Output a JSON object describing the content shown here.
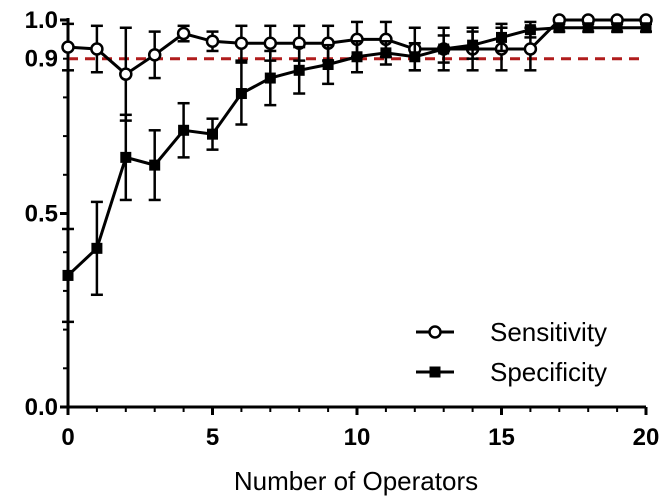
{
  "chart_data": {
    "type": "line",
    "xlabel": "Number of Operators",
    "ylabel": "",
    "xlim": [
      0,
      20
    ],
    "ylim": [
      0,
      1.0
    ],
    "x_ticks": [
      "0",
      "5",
      "10",
      "15",
      "20"
    ],
    "y_ticks": [
      "0.0",
      "0.5",
      "1.0"
    ],
    "reference_line": {
      "value": 0.9,
      "label": "0.9",
      "color": "#b01c1c",
      "style": "dashed"
    },
    "legend_position": "bottom-right",
    "grid": false,
    "x": [
      0,
      1,
      2,
      3,
      4,
      5,
      6,
      7,
      8,
      9,
      10,
      11,
      12,
      13,
      14,
      15,
      16,
      17,
      18,
      19,
      20
    ],
    "series": [
      {
        "name": "Sensitivity",
        "marker": "open-circle",
        "values": [
          0.93,
          0.925,
          0.86,
          0.91,
          0.965,
          0.945,
          0.94,
          0.94,
          0.94,
          0.94,
          0.95,
          0.95,
          0.925,
          0.925,
          0.925,
          0.925,
          0.925,
          1.0,
          1.0,
          1.0,
          1.0
        ],
        "error": [
          0.06,
          0.06,
          0.12,
          0.06,
          0.02,
          0.025,
          0.045,
          0.045,
          0.045,
          0.045,
          0.045,
          0.045,
          0.055,
          0.055,
          0.055,
          0.055,
          0.055,
          0.0,
          0.0,
          0.0,
          0.0
        ]
      },
      {
        "name": "Specificity",
        "marker": "filled-square",
        "values": [
          0.34,
          0.41,
          0.645,
          0.625,
          0.715,
          0.705,
          0.81,
          0.85,
          0.87,
          0.885,
          0.905,
          0.915,
          0.905,
          0.925,
          0.935,
          0.955,
          0.975,
          0.98,
          0.98,
          0.98,
          0.98
        ],
        "error": [
          0.12,
          0.12,
          0.11,
          0.09,
          0.07,
          0.04,
          0.08,
          0.07,
          0.06,
          0.05,
          0.04,
          0.03,
          0.035,
          0.035,
          0.035,
          0.035,
          0.02,
          0.01,
          0.01,
          0.01,
          0.01
        ]
      }
    ],
    "colors": {
      "axis": "#000000",
      "series": "#000000",
      "reference": "#b01c1c"
    }
  }
}
